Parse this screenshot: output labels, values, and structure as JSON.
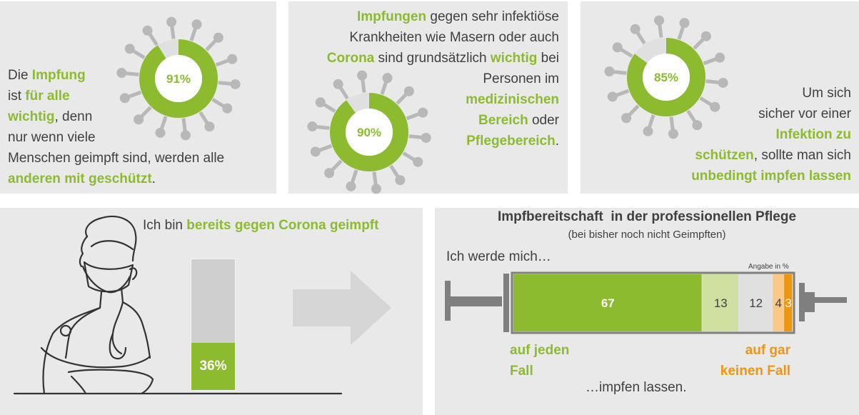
{
  "colors": {
    "green": "#8dbb2f",
    "light_green": "#cfe0a0",
    "grey": "#cfcfcf",
    "light_grey": "#e0e0e0",
    "peach": "#fac98a",
    "orange": "#f0950f",
    "syringe": "#7f7f7f"
  },
  "panel1": {
    "percent_label": "91%",
    "t1": "Die ",
    "t2": "Impfung",
    "t3": "ist ",
    "t4": "für alle",
    "t5": "wichtig",
    "t6": ", denn",
    "t7": "nur wenn viele",
    "t8": "Menschen geimpft sind, werden alle",
    "t9": "anderen mit geschützt",
    "t10": "."
  },
  "panel2": {
    "percent_label": "90%",
    "l1a": "Impfungen",
    "l1b": " gegen sehr infektiöse",
    "l2": "Krankheiten wie Masern oder auch",
    "l3a": "Corona",
    "l3b": " sind grundsätzlich ",
    "l3c": "wichtig",
    "l3d": " bei",
    "l4": "Personen im",
    "l5": "medizinischen",
    "l6a": "Bereich",
    "l6b": " oder",
    "l7a": "Pflegebereich",
    "l7b": "."
  },
  "panel3": {
    "percent_label": "85%",
    "l1": "Um sich",
    "l2": "sicher vor einer",
    "l3": "Infektion zu",
    "l4a": "schützen",
    "l4b": ", sollte man sich",
    "l5": "unbedingt impfen lassen"
  },
  "panel4": {
    "heading_a": "Ich bin  ",
    "heading_b": "bereits gegen Corona geimpft",
    "bar_label": "36%"
  },
  "panel5": {
    "title": "Impfbereitschaft  in der professionellen Pflege",
    "subtitle": "(bei bisher noch nicht Geimpften)",
    "lead": "Ich werde mich…",
    "unit_note": "Angabe in %",
    "left_label_1": "auf jeden",
    "left_label_2": "Fall",
    "right_label_1": "auf gar",
    "right_label_2": "keinen Fall",
    "footer": "…impfen lassen."
  },
  "chart_data": [
    {
      "type": "pie",
      "values": [
        91,
        9
      ]
    },
    {
      "type": "pie",
      "values": [
        90,
        10
      ]
    },
    {
      "type": "pie",
      "values": [
        85,
        15
      ]
    },
    {
      "type": "bar",
      "values": [
        36
      ],
      "ylim": [
        0,
        100
      ]
    },
    {
      "type": "bar",
      "values": [
        67,
        13,
        12,
        4,
        3
      ]
    }
  ]
}
